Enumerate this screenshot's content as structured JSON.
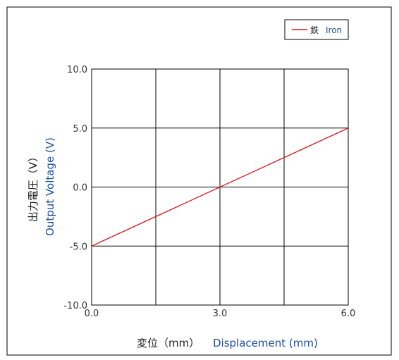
{
  "chart_data": {
    "type": "line",
    "xlabel_jp": "変位（mm）",
    "xlabel_en": "Displacement (mm)",
    "ylabel_jp": "出力電圧（V）",
    "ylabel_en": "Output Voltage (V)",
    "xlim": [
      0,
      6
    ],
    "ylim": [
      -10,
      10
    ],
    "xticks": [
      "0.0",
      "3.0",
      "6.0"
    ],
    "xgrid": [
      0,
      1.5,
      3,
      4.5,
      6
    ],
    "yticks": [
      "10.0",
      "5.0",
      "0.0",
      "-5.0",
      "-10.0"
    ],
    "grid": true,
    "legend_position": "top-right",
    "series": [
      {
        "name_jp": "鉄",
        "name_en": "Iron",
        "color": "#d7191c",
        "x": [
          0,
          6
        ],
        "y": [
          -5,
          5
        ]
      }
    ]
  }
}
